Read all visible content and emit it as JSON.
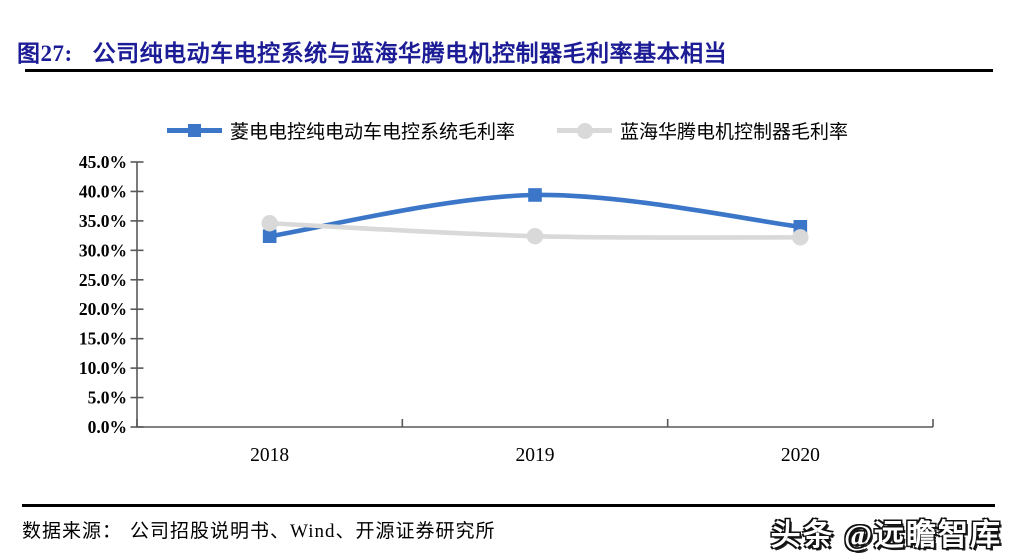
{
  "header": {
    "figure_label": "图27:",
    "title": "公司纯电动车电控系统与蓝海华腾电机控制器毛利率基本相当"
  },
  "chart_data": {
    "type": "line",
    "title": "公司纯电动车电控系统与蓝海华腾电机控制器毛利率基本相当",
    "categories": [
      "2018",
      "2019",
      "2020"
    ],
    "series": [
      {
        "name": "菱电电控纯电动车电控系统毛利率",
        "color": "#3B76C8",
        "marker": "square",
        "values": [
          32.4,
          39.4,
          34.0
        ]
      },
      {
        "name": "蓝海华腾电机控制器毛利率",
        "color": "#D9D9D9",
        "marker": "circle",
        "values": [
          34.6,
          32.4,
          32.2
        ]
      }
    ],
    "ylim": [
      0,
      45
    ],
    "ytick_step": 5,
    "ytick_labels": [
      "0.0%",
      "5.0%",
      "10.0%",
      "15.0%",
      "20.0%",
      "25.0%",
      "30.0%",
      "35.0%",
      "40.0%",
      "45.0%"
    ],
    "xlabel": "",
    "ylabel": "",
    "grid": false,
    "smooth": true,
    "legend_position": "top-center",
    "axis_color": "#595959"
  },
  "footer": {
    "source_label": "数据来源：",
    "source_text": "公司招股说明书、Wind、开源证券研究所",
    "watermark": "头条 @远瞻智库"
  }
}
